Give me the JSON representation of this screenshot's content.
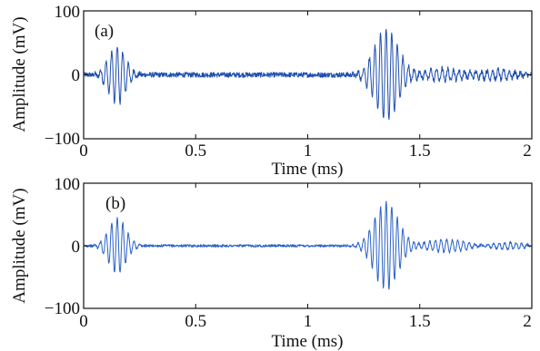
{
  "chart_data": [
    {
      "type": "line",
      "panel_label": "(a)",
      "xlabel": "Time (ms)",
      "ylabel": "Amplitude (mV)",
      "xlim": [
        0,
        2
      ],
      "ylim": [
        -100,
        100
      ],
      "xticks": [
        "0",
        "0.5",
        "1",
        "1.5",
        "2"
      ],
      "yticks": [
        "100",
        "0",
        "−100"
      ],
      "line_color": "#1f4fb0",
      "noise_amplitude": 4,
      "bursts": [
        {
          "center_ms": 0.15,
          "width_ms": 0.055,
          "peak_mV": 45,
          "freq_kHz": 40
        },
        {
          "center_ms": 1.35,
          "width_ms": 0.075,
          "peak_mV": 72,
          "freq_kHz": 40
        },
        {
          "center_ms": 1.6,
          "width_ms": 0.12,
          "peak_mV": 10,
          "freq_kHz": 40
        },
        {
          "center_ms": 1.85,
          "width_ms": 0.1,
          "peak_mV": 8,
          "freq_kHz": 40
        }
      ]
    },
    {
      "type": "line",
      "panel_label": "(b)",
      "xlabel": "Time (ms)",
      "ylabel": "Amplitude (mV)",
      "xlim": [
        0,
        2
      ],
      "ylim": [
        -100,
        100
      ],
      "xticks": [
        "0",
        "0.5",
        "1",
        "1.5",
        "2"
      ],
      "yticks": [
        "100",
        "0",
        "−100"
      ],
      "line_color": "#2a62c8",
      "noise_amplitude": 2,
      "bursts": [
        {
          "center_ms": 0.15,
          "width_ms": 0.055,
          "peak_mV": 45,
          "freq_kHz": 40
        },
        {
          "center_ms": 1.35,
          "width_ms": 0.075,
          "peak_mV": 70,
          "freq_kHz": 40
        },
        {
          "center_ms": 1.62,
          "width_ms": 0.13,
          "peak_mV": 10,
          "freq_kHz": 40
        },
        {
          "center_ms": 1.88,
          "width_ms": 0.1,
          "peak_mV": 6,
          "freq_kHz": 40
        }
      ]
    }
  ]
}
